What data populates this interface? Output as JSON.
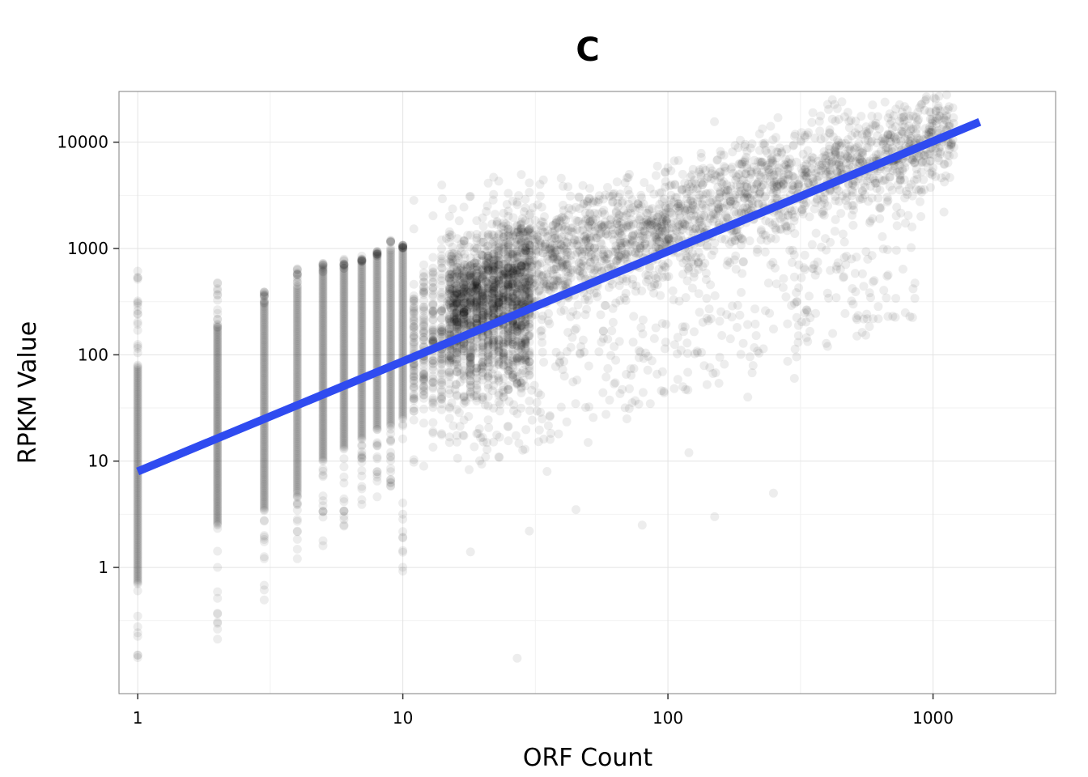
{
  "chart_data": {
    "type": "scatter",
    "title": "C",
    "xlabel": "ORF Count",
    "ylabel": "RPKM Value",
    "x_scale": "log10",
    "y_scale": "log10",
    "xlim": [
      0.85,
      2900
    ],
    "ylim": [
      0.065,
      30000
    ],
    "x_ticks": [
      {
        "value": 1,
        "label": "1"
      },
      {
        "value": 10,
        "label": "10"
      },
      {
        "value": 100,
        "label": "100"
      },
      {
        "value": 1000,
        "label": "1000"
      }
    ],
    "y_ticks": [
      {
        "value": 1,
        "label": "1"
      },
      {
        "value": 10,
        "label": "10"
      },
      {
        "value": 100,
        "label": "100"
      },
      {
        "value": 1000,
        "label": "1000"
      },
      {
        "value": 10000,
        "label": "10000"
      }
    ],
    "grid": true,
    "point_color": "#000000",
    "point_opacity": 0.07,
    "fit_line": {
      "color": "#2f4bf0",
      "x": [
        1,
        1500
      ],
      "y": [
        8,
        15500
      ]
    },
    "series": [
      {
        "columns": [
          {
            "x": 1,
            "y_min": 0.12,
            "y_max": 650,
            "band": [
              0.7,
              80
            ]
          },
          {
            "x": 2,
            "y_min": 0.16,
            "y_max": 640,
            "band": [
              2.5,
              180
            ]
          },
          {
            "x": 3,
            "y_min": 0.45,
            "y_max": 400,
            "band": [
              3.5,
              300
            ]
          },
          {
            "x": 4,
            "y_min": 1.2,
            "y_max": 650,
            "band": [
              5,
              450
            ]
          },
          {
            "x": 5,
            "y_min": 1.6,
            "y_max": 750,
            "band": [
              10,
              600
            ]
          },
          {
            "x": 6,
            "y_min": 2.4,
            "y_max": 800,
            "band": [
              13,
              650
            ]
          },
          {
            "x": 7,
            "y_min": 3.8,
            "y_max": 850,
            "band": [
              16,
              750
            ]
          },
          {
            "x": 8,
            "y_min": 4.5,
            "y_max": 950,
            "band": [
              20,
              850
            ]
          },
          {
            "x": 9,
            "y_min": 5,
            "y_max": 1200,
            "band": [
              22,
              950
            ]
          },
          {
            "x": 10,
            "y_min": 0.6,
            "y_max": 1100,
            "band": [
              25,
              1000
            ]
          }
        ],
        "cloud": [
          {
            "x": 15,
            "y": 300
          },
          {
            "x": 20,
            "y": 420
          },
          {
            "x": 30,
            "y": 650
          },
          {
            "x": 50,
            "y": 1050
          },
          {
            "x": 100,
            "y": 1800
          },
          {
            "x": 200,
            "y": 3300
          },
          {
            "x": 400,
            "y": 5500
          },
          {
            "x": 800,
            "y": 9000
          },
          {
            "x": 1200,
            "y": 11500
          }
        ],
        "outliers": [
          {
            "x": 27,
            "y": 0.14
          },
          {
            "x": 18,
            "y": 1.4
          },
          {
            "x": 30,
            "y": 2.2
          },
          {
            "x": 45,
            "y": 3.5
          },
          {
            "x": 80,
            "y": 2.5
          },
          {
            "x": 150,
            "y": 3
          },
          {
            "x": 250,
            "y": 5
          },
          {
            "x": 120,
            "y": 12
          },
          {
            "x": 200,
            "y": 40
          },
          {
            "x": 300,
            "y": 60
          },
          {
            "x": 400,
            "y": 120
          },
          {
            "x": 500,
            "y": 300
          },
          {
            "x": 600,
            "y": 500
          },
          {
            "x": 900,
            "y": 2000
          },
          {
            "x": 1100,
            "y": 2200
          },
          {
            "x": 50,
            "y": 15
          },
          {
            "x": 70,
            "y": 25
          },
          {
            "x": 35,
            "y": 8
          }
        ]
      }
    ]
  }
}
